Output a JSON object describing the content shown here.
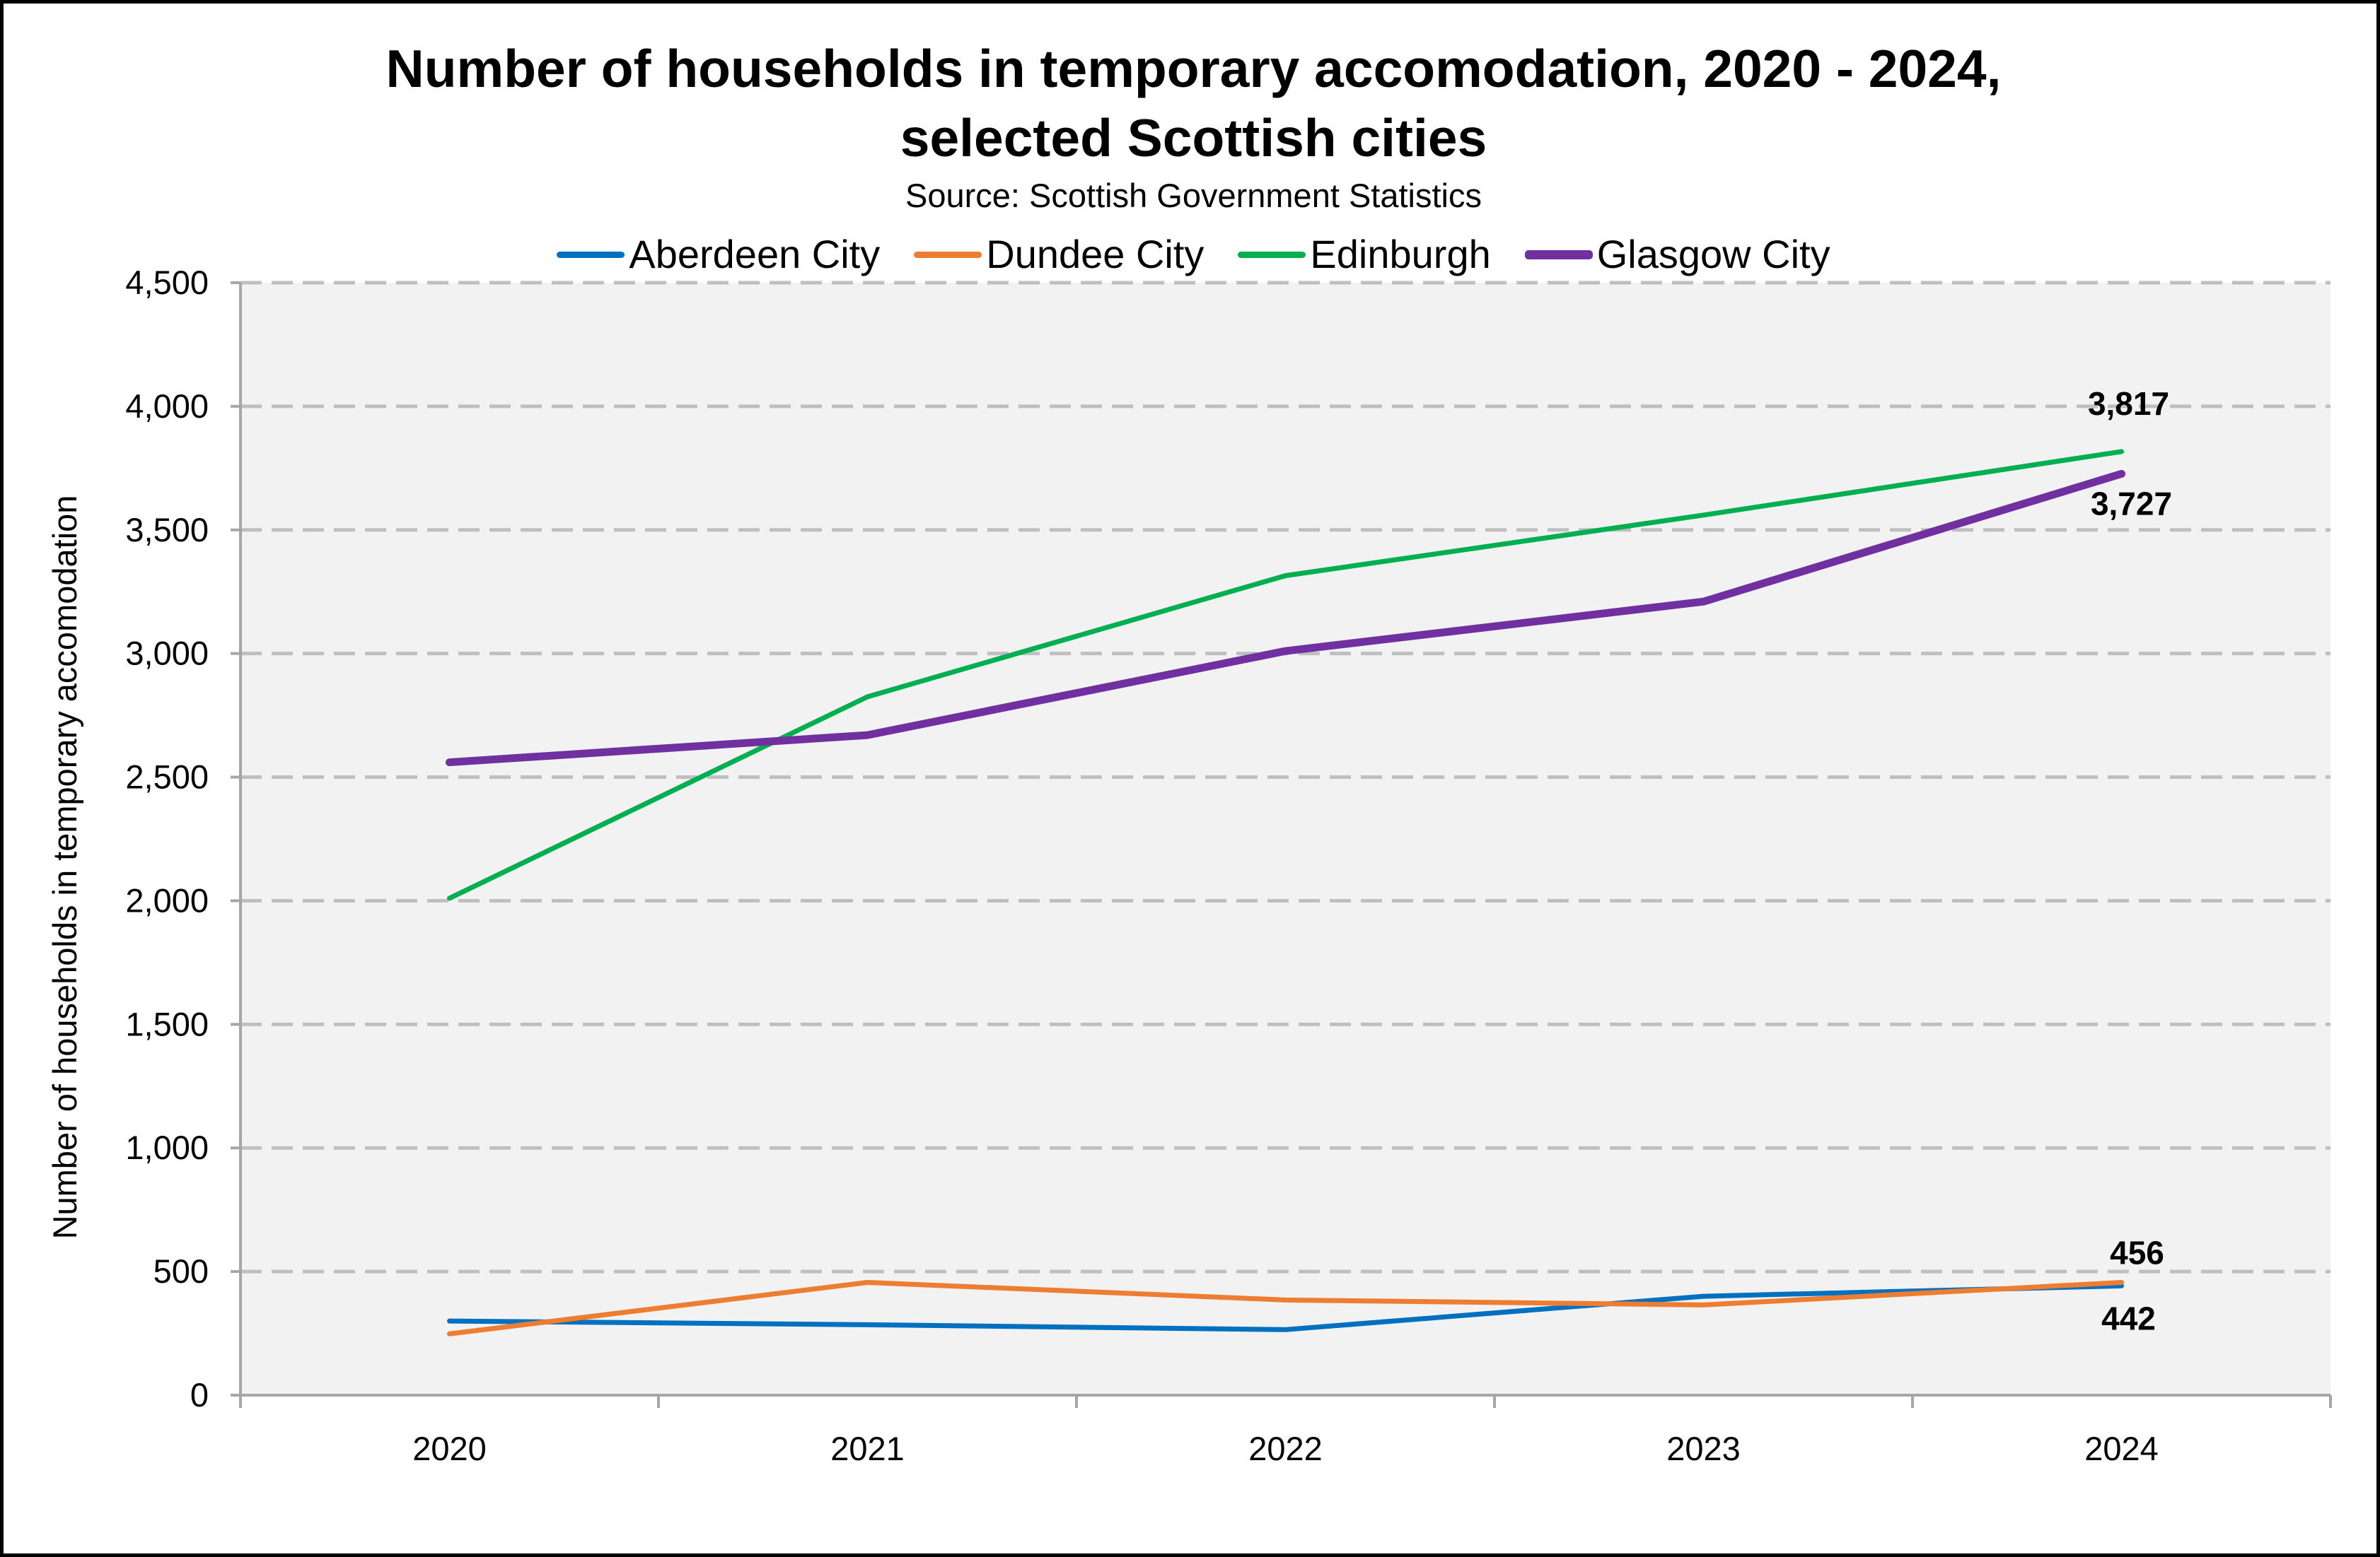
{
  "chart_data": {
    "type": "line",
    "title_line1": "Number of households in temporary accomodation, 2020 - 2024,",
    "title_line2": "selected Scottish cities",
    "subtitle": "Source: Scottish Government Statistics",
    "xlabel": "",
    "ylabel": "Number of households in temporary accomodation",
    "categories": [
      "2020",
      "2021",
      "2022",
      "2023",
      "2024"
    ],
    "ylim": [
      0,
      4500
    ],
    "yticks": [
      0,
      500,
      1000,
      1500,
      2000,
      2500,
      3000,
      3500,
      4000,
      4500
    ],
    "ytick_labels": [
      "0",
      "500",
      "1,000",
      "1,500",
      "2,000",
      "2,500",
      "3,000",
      "3,500",
      "4,000",
      "4,500"
    ],
    "grid": "horizontal dashed",
    "legend_position": "top",
    "plot_background": "#F2F2F2",
    "series": [
      {
        "name": "Aberdeen City",
        "color": "#0070C0",
        "values": [
          300,
          285,
          265,
          400,
          442
        ]
      },
      {
        "name": "Dundee City",
        "color": "#ED7D31",
        "values": [
          248,
          456,
          385,
          365,
          456
        ]
      },
      {
        "name": "Edinburgh",
        "color": "#00B050",
        "values": [
          2010,
          2825,
          3315,
          3560,
          3817
        ]
      },
      {
        "name": "Glasgow City",
        "color": "#7030A0",
        "values": [
          2560,
          2670,
          3010,
          3210,
          3727
        ]
      }
    ],
    "data_labels": [
      {
        "series": "Edinburgh",
        "category": "2024",
        "text": "3,817"
      },
      {
        "series": "Glasgow City",
        "category": "2024",
        "text": "3,727"
      },
      {
        "series": "Dundee City",
        "category": "2024",
        "text": "456"
      },
      {
        "series": "Aberdeen City",
        "category": "2024",
        "text": "442"
      }
    ]
  }
}
